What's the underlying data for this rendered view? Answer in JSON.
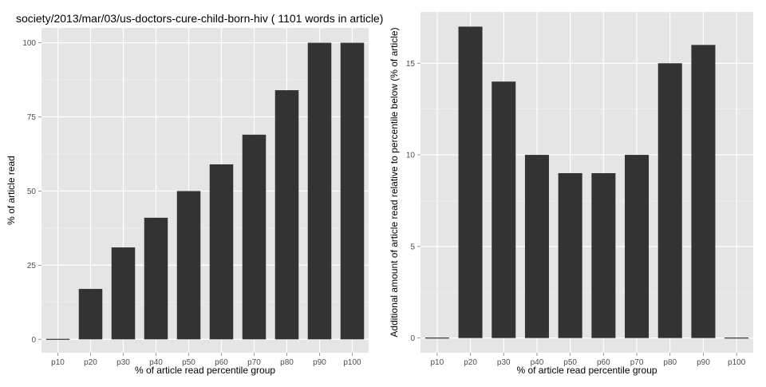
{
  "chart_data": [
    {
      "type": "bar",
      "title": "society/2013/mar/03/us-doctors-cure-child-born-hiv ( 1101 words in article)",
      "xlabel": "% of article read percentile group",
      "ylabel": "% of article read",
      "categories": [
        "p10",
        "p20",
        "p30",
        "p40",
        "p50",
        "p60",
        "p70",
        "p80",
        "p90",
        "p100"
      ],
      "values": [
        0,
        17,
        31,
        41,
        50,
        59,
        69,
        84,
        100,
        100
      ],
      "ylim": [
        -4.5,
        105
      ],
      "yticks": [
        0,
        25,
        50,
        75,
        100
      ],
      "grid": true,
      "background": "#e5e5e5",
      "bar_color": "#333333"
    },
    {
      "type": "bar",
      "title": "",
      "xlabel": "% of article read percentile group",
      "ylabel": "Additional amount of article read relative to percentile below (% of article)",
      "categories": [
        "p10",
        "p20",
        "p30",
        "p40",
        "p50",
        "p60",
        "p70",
        "p80",
        "p90",
        "p100"
      ],
      "values": [
        0,
        17,
        14,
        10,
        9,
        9,
        10,
        15,
        16,
        0
      ],
      "ylim": [
        -0.8,
        17.8
      ],
      "yticks": [
        0,
        5,
        10,
        15
      ],
      "grid": true,
      "background": "#e5e5e5",
      "bar_color": "#333333"
    }
  ]
}
